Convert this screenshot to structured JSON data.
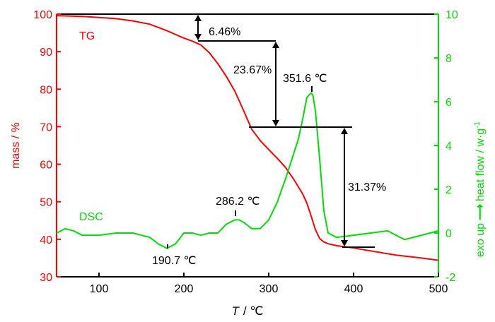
{
  "chart_data": {
    "type": "line",
    "xlabel": {
      "symbol": "T",
      "unit": "/ ℃"
    },
    "ylabel_left": "mass / %",
    "ylabel_right": "exo up",
    "ylabel_right_unit": "heat flow / w·g",
    "ylabel_right_sup": "-1",
    "xlim": [
      50,
      500
    ],
    "ylim_left": [
      30,
      100
    ],
    "ylim_right": [
      -2,
      10
    ],
    "xticks": [
      100,
      200,
      300,
      400,
      500
    ],
    "yticks_left": [
      30,
      40,
      50,
      60,
      70,
      80,
      90,
      100
    ],
    "yticks_right": [
      -2,
      0,
      2,
      4,
      6,
      8,
      10
    ],
    "colors": {
      "tg": "#ff0000",
      "dsc": "#00e000",
      "annotation": "#000000"
    },
    "series": [
      {
        "name": "TG",
        "axis": "left",
        "x": [
          50,
          80,
          100,
          120,
          140,
          160,
          180,
          200,
          210,
          220,
          230,
          240,
          250,
          260,
          270,
          280,
          290,
          300,
          310,
          320,
          330,
          340,
          345,
          350,
          355,
          360,
          365,
          370,
          380,
          400,
          420,
          450,
          480,
          500
        ],
        "y": [
          99.6,
          99.4,
          99.1,
          98.8,
          98.2,
          97.3,
          95.6,
          93.6,
          92.8,
          91.8,
          89.7,
          86.8,
          83.4,
          79.5,
          74.5,
          69.3,
          66.3,
          63.9,
          61.6,
          59.1,
          55.8,
          52.1,
          49.6,
          46.2,
          42.6,
          40.2,
          39.3,
          38.8,
          38.3,
          37.7,
          36.9,
          35.8,
          35.0,
          34.4
        ]
      },
      {
        "name": "DSC",
        "axis": "right",
        "x": [
          50,
          60,
          70,
          80,
          100,
          120,
          140,
          160,
          170,
          180,
          185,
          190,
          200,
          210,
          220,
          230,
          240,
          250,
          260,
          265,
          270,
          280,
          290,
          300,
          310,
          320,
          330,
          335,
          340,
          345,
          350,
          352,
          355,
          360,
          365,
          370,
          380,
          400,
          420,
          440,
          460,
          480,
          500
        ],
        "y": [
          0.0,
          0.2,
          0.1,
          -0.1,
          -0.1,
          0.0,
          0.0,
          -0.2,
          -0.5,
          -0.7,
          -0.6,
          -0.5,
          0.0,
          0.0,
          -0.1,
          0.0,
          0.0,
          0.4,
          0.6,
          0.6,
          0.5,
          0.2,
          0.2,
          0.6,
          1.4,
          2.5,
          3.7,
          4.3,
          5.2,
          6.2,
          6.4,
          6.3,
          5.6,
          3.4,
          1.0,
          0.0,
          -0.2,
          -0.1,
          0.0,
          0.1,
          -0.3,
          -0.1,
          0.1
        ]
      }
    ],
    "annotations": {
      "mass_losses": [
        "6.46%",
        "23.67%",
        "31.37%"
      ],
      "peaks": [
        "351.6 ℃",
        "286.2 ℃",
        "190.7 ℃"
      ]
    }
  }
}
